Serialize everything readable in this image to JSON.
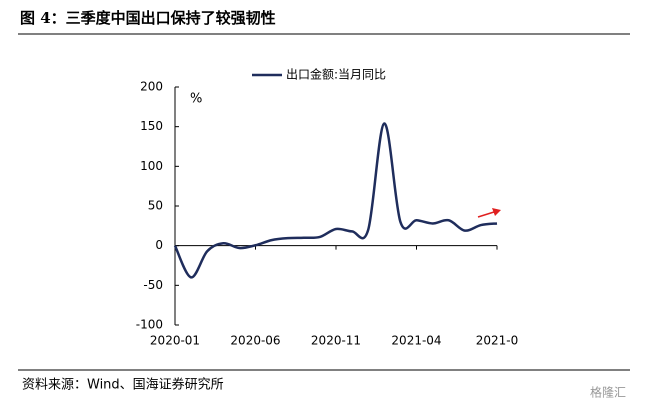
{
  "header": {
    "title": "图 4：三季度中国出口保持了较强韧性"
  },
  "chart_data": {
    "type": "line",
    "categories": [
      "2020-01",
      null,
      null,
      null,
      null,
      "2020-06",
      null,
      null,
      null,
      null,
      "2020-11",
      null,
      null,
      null,
      null,
      "2021-04",
      null,
      null,
      null,
      null,
      "2021-0"
    ],
    "series": [
      {
        "name": "出口金额:当月同比",
        "color": "#1f2d5c",
        "values": [
          0,
          -40,
          -7,
          3,
          -3,
          0.5,
          7,
          9.5,
          10,
          11,
          21,
          18,
          20,
          154,
          30,
          32,
          28,
          32,
          19,
          26,
          28
        ]
      }
    ],
    "ylim": [
      -100,
      200
    ],
    "yticks": [
      -100,
      -50,
      0,
      50,
      100,
      150,
      200
    ],
    "y_unit": "%",
    "legend": "top"
  },
  "footer": {
    "source": "资料来源：Wind、国海证券研究所",
    "watermark": "格隆汇"
  }
}
